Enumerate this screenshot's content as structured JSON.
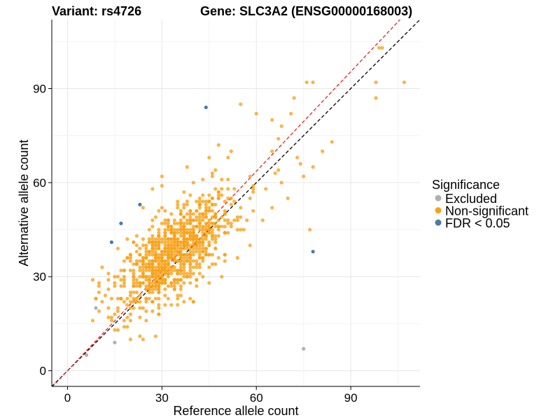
{
  "chart_data": {
    "type": "scatter",
    "title_left": "Variant: rs4726",
    "title_right": "Gene: SLC3A2 (ENSG00000168003)",
    "xlabel": "Reference allele count",
    "ylabel": "Alternative allele count",
    "xlim": [
      -5,
      112
    ],
    "ylim": [
      -5,
      112
    ],
    "xticks": [
      0,
      30,
      60,
      90
    ],
    "yticks": [
      0,
      30,
      60,
      90
    ],
    "grid": true,
    "legend": {
      "title": "Significance",
      "placement": "right",
      "entries": [
        {
          "label": "Excluded",
          "color": "#b0b0b0"
        },
        {
          "label": "Non-significant",
          "color": "#f7a21b"
        },
        {
          "label": "FDR < 0.05",
          "color": "#4a7ba7"
        }
      ]
    },
    "reference_lines": [
      {
        "name": "identity",
        "intercept": 0,
        "slope": 1,
        "color": "#000000",
        "dashed": true
      },
      {
        "name": "fit",
        "intercept": 0,
        "slope": 1.06,
        "color": "#e8201c",
        "dashed": true
      }
    ],
    "series": [
      {
        "name": "Excluded",
        "color": "#b0b0b0",
        "points": [
          [
            9,
            20
          ],
          [
            15,
            9
          ],
          [
            6,
            5
          ],
          [
            75,
            7
          ]
        ]
      },
      {
        "name": "FDR < 0.05",
        "color": "#4a7ba7",
        "points": [
          [
            44,
            84
          ],
          [
            23,
            53
          ],
          [
            17,
            47
          ],
          [
            14,
            41
          ],
          [
            78,
            38
          ]
        ]
      },
      {
        "name": "Non-significant",
        "color": "#f7a21b",
        "cluster": {
          "count": 900,
          "x_mean": 34,
          "y_mean": 38,
          "x_sd": 9,
          "y_sd": 9.5,
          "corr": 0.7,
          "seed": 4726
        },
        "points": [
          [
            76,
            92
          ],
          [
            78,
            92
          ],
          [
            98,
            92
          ],
          [
            107,
            92
          ],
          [
            98,
            87
          ],
          [
            99,
            103
          ],
          [
            100,
            103
          ],
          [
            84,
            73
          ],
          [
            81,
            70
          ],
          [
            78,
            65
          ],
          [
            74,
            66
          ],
          [
            75,
            62
          ],
          [
            73,
            68
          ],
          [
            72,
            87
          ],
          [
            71,
            82
          ],
          [
            68,
            78
          ],
          [
            55,
            85
          ],
          [
            60,
            82
          ],
          [
            65,
            80
          ],
          [
            77,
            45
          ],
          [
            70,
            55
          ],
          [
            68,
            60
          ],
          [
            66,
            63
          ],
          [
            63,
            58
          ],
          [
            12,
            24
          ],
          [
            11,
            22
          ],
          [
            13,
            26
          ],
          [
            10,
            28
          ],
          [
            14,
            16
          ],
          [
            16,
            13
          ],
          [
            28,
            11
          ],
          [
            24,
            10
          ],
          [
            20,
            18
          ],
          [
            19,
            14
          ],
          [
            40,
            22
          ],
          [
            45,
            28
          ],
          [
            50,
            35
          ],
          [
            56,
            45
          ],
          [
            58,
            40
          ],
          [
            62,
            48
          ],
          [
            65,
            52
          ],
          [
            52,
            70
          ],
          [
            48,
            72
          ],
          [
            45,
            68
          ],
          [
            38,
            65
          ],
          [
            30,
            62
          ],
          [
            27,
            58
          ]
        ]
      }
    ]
  }
}
